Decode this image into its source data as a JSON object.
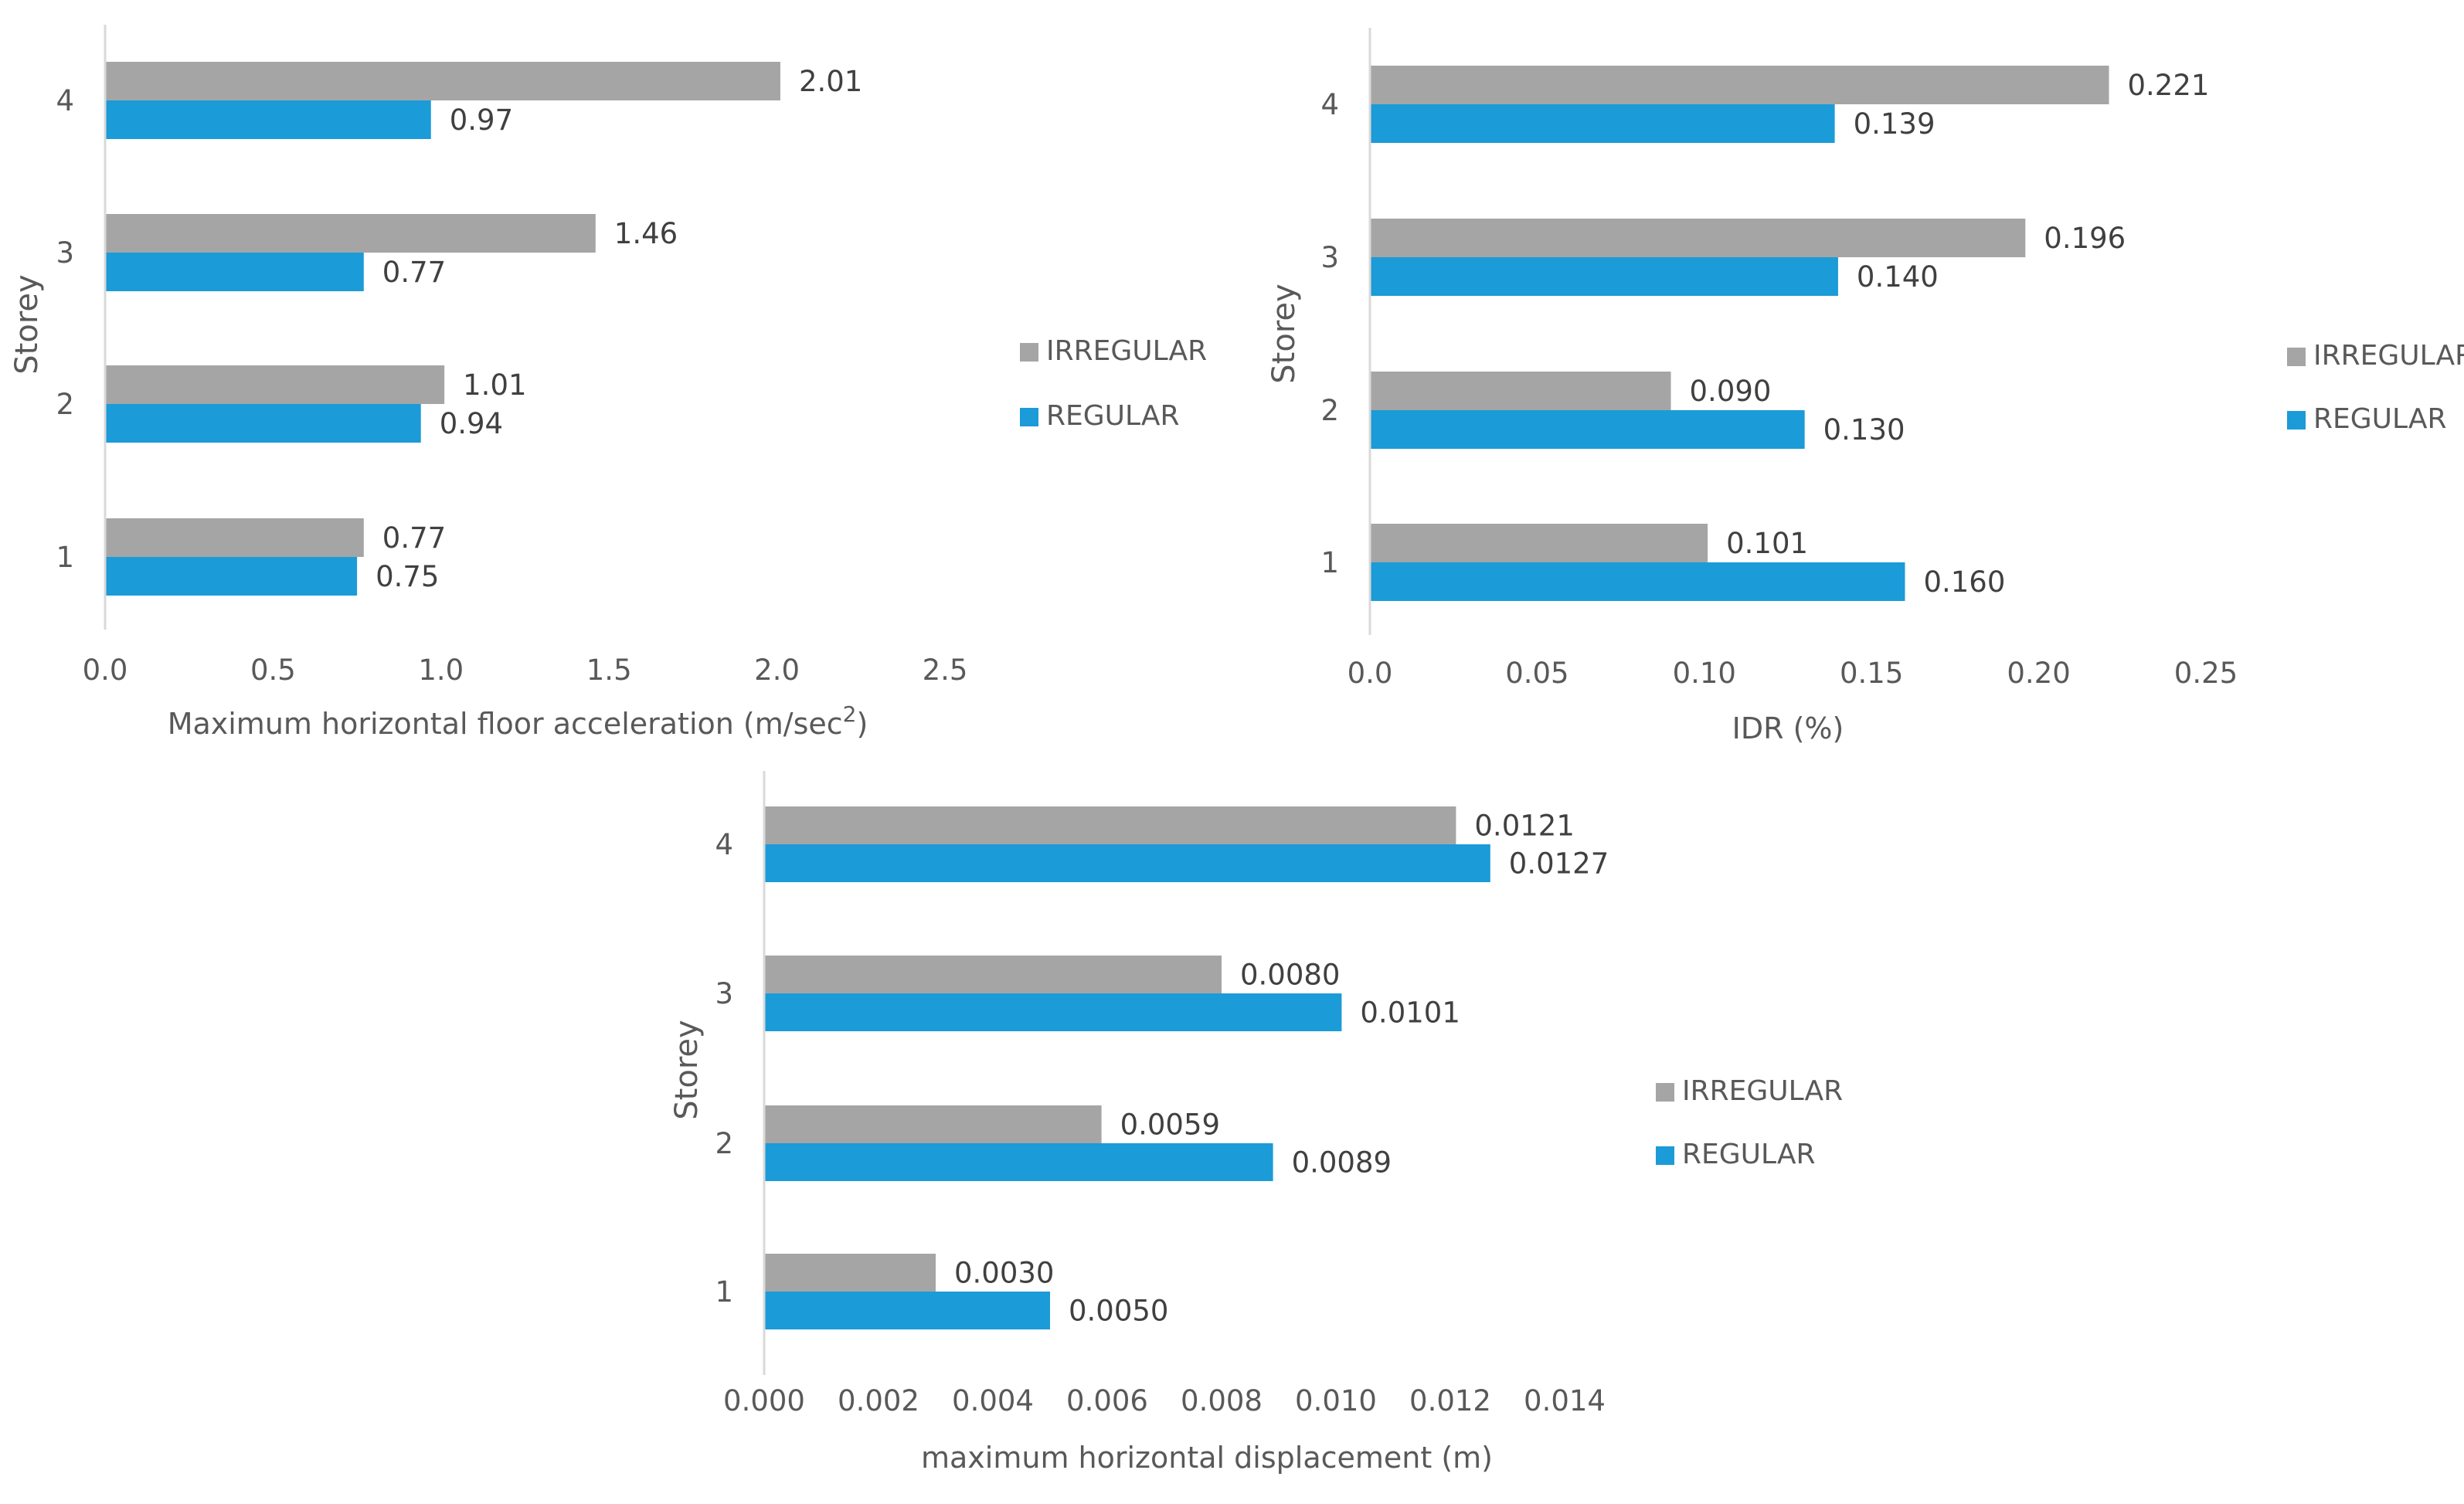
{
  "colors": {
    "irregular": "#a5a5a5",
    "regular": "#1b9bd7",
    "axis": "#d9d9d9",
    "text": "#595959",
    "label": "#404040"
  },
  "chart_data": [
    {
      "type": "bar",
      "orientation": "horizontal",
      "title": "",
      "xlabel": "Maximum horizontal floor acceleration (m/sec",
      "xlabel_superscript": "2",
      "xlabel_suffix": ")",
      "ylabel": "Storey",
      "categories": [
        "1",
        "2",
        "3",
        "4"
      ],
      "xlim": [
        0,
        2.5
      ],
      "xticks": [
        "0.0",
        "0.5",
        "1.0",
        "1.5",
        "2.0",
        "2.5"
      ],
      "legend": [
        "IRREGULAR",
        "REGULAR"
      ],
      "legend_position": "right",
      "series": [
        {
          "name": "IRREGULAR",
          "values": [
            0.77,
            1.01,
            1.46,
            2.01
          ],
          "labels": [
            "0.77",
            "1.01",
            "1.46",
            "2.01"
          ]
        },
        {
          "name": "REGULAR",
          "values": [
            0.75,
            0.94,
            0.77,
            0.97
          ],
          "labels": [
            "0.75",
            "0.94",
            "0.77",
            "0.97"
          ]
        }
      ]
    },
    {
      "type": "bar",
      "orientation": "horizontal",
      "title": "",
      "xlabel": "IDR (%)",
      "ylabel": "Storey",
      "categories": [
        "1",
        "2",
        "3",
        "4"
      ],
      "xlim": [
        0,
        0.25
      ],
      "xticks": [
        "0.0",
        "0.05",
        "0.10",
        "0.15",
        "0.20",
        "0.25"
      ],
      "legend": [
        "IRREGULAR",
        "REGULAR"
      ],
      "legend_position": "right",
      "series": [
        {
          "name": "IRREGULAR",
          "values": [
            0.101,
            0.09,
            0.196,
            0.221
          ],
          "labels": [
            "0.101",
            "0.090",
            "0.196",
            "0.221"
          ]
        },
        {
          "name": "REGULAR",
          "values": [
            0.16,
            0.13,
            0.14,
            0.139
          ],
          "labels": [
            "0.160",
            "0.130",
            "0.140",
            "0.139"
          ]
        }
      ]
    },
    {
      "type": "bar",
      "orientation": "horizontal",
      "title": "",
      "xlabel": "maximum horizontal displacement (m)",
      "ylabel": "Storey",
      "categories": [
        "1",
        "2",
        "3",
        "4"
      ],
      "xlim": [
        0,
        0.014
      ],
      "xticks": [
        "0.000",
        "0.002",
        "0.004",
        "0.006",
        "0.008",
        "0.010",
        "0.012",
        "0.014"
      ],
      "legend": [
        "IRREGULAR",
        "REGULAR"
      ],
      "legend_position": "right",
      "series": [
        {
          "name": "IRREGULAR",
          "values": [
            0.003,
            0.0059,
            0.008,
            0.0121
          ],
          "labels": [
            "0.0030",
            "0.0059",
            "0.0080",
            "0.0121"
          ]
        },
        {
          "name": "REGULAR",
          "values": [
            0.005,
            0.0089,
            0.0101,
            0.0127
          ],
          "labels": [
            "0.0050",
            "0.0089",
            "0.0101",
            "0.0127"
          ]
        }
      ]
    }
  ]
}
